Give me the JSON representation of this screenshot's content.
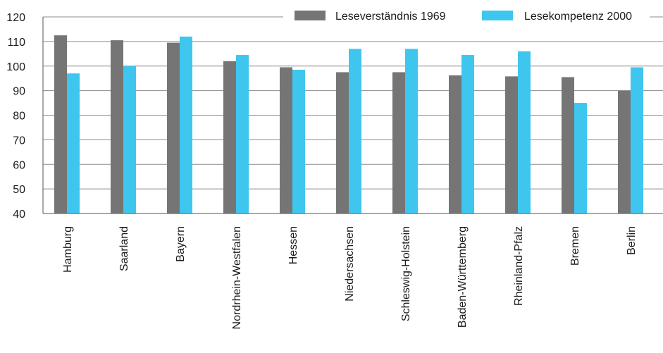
{
  "chart_data": {
    "type": "bar",
    "categories": [
      "Hamburg",
      "Saarland",
      "Bayern",
      "Nordrhein-Westfalen",
      "Hessen",
      "Niedersachsen",
      "Schleswig-Holstein",
      "Baden-Württemberg",
      "Rheinland-Pfalz",
      "Bremen",
      "Berlin"
    ],
    "series": [
      {
        "name": "Leseverständnis 1969",
        "color": "#757575",
        "values": [
          112.5,
          110.5,
          109.5,
          102,
          99.5,
          97.5,
          97.5,
          96.2,
          95.8,
          95.5,
          90
        ]
      },
      {
        "name": "Lesekompetenz 2000",
        "color": "#3fc6ef",
        "values": [
          97,
          100,
          112,
          104.5,
          98.5,
          107,
          107,
          104.5,
          106,
          85,
          99.5
        ]
      }
    ],
    "ylim": [
      40,
      120
    ],
    "yticks": [
      40,
      50,
      60,
      70,
      80,
      90,
      100,
      110,
      120
    ],
    "grid": true,
    "legend_position": "top-right",
    "title": "",
    "xlabel": "",
    "ylabel": ""
  }
}
